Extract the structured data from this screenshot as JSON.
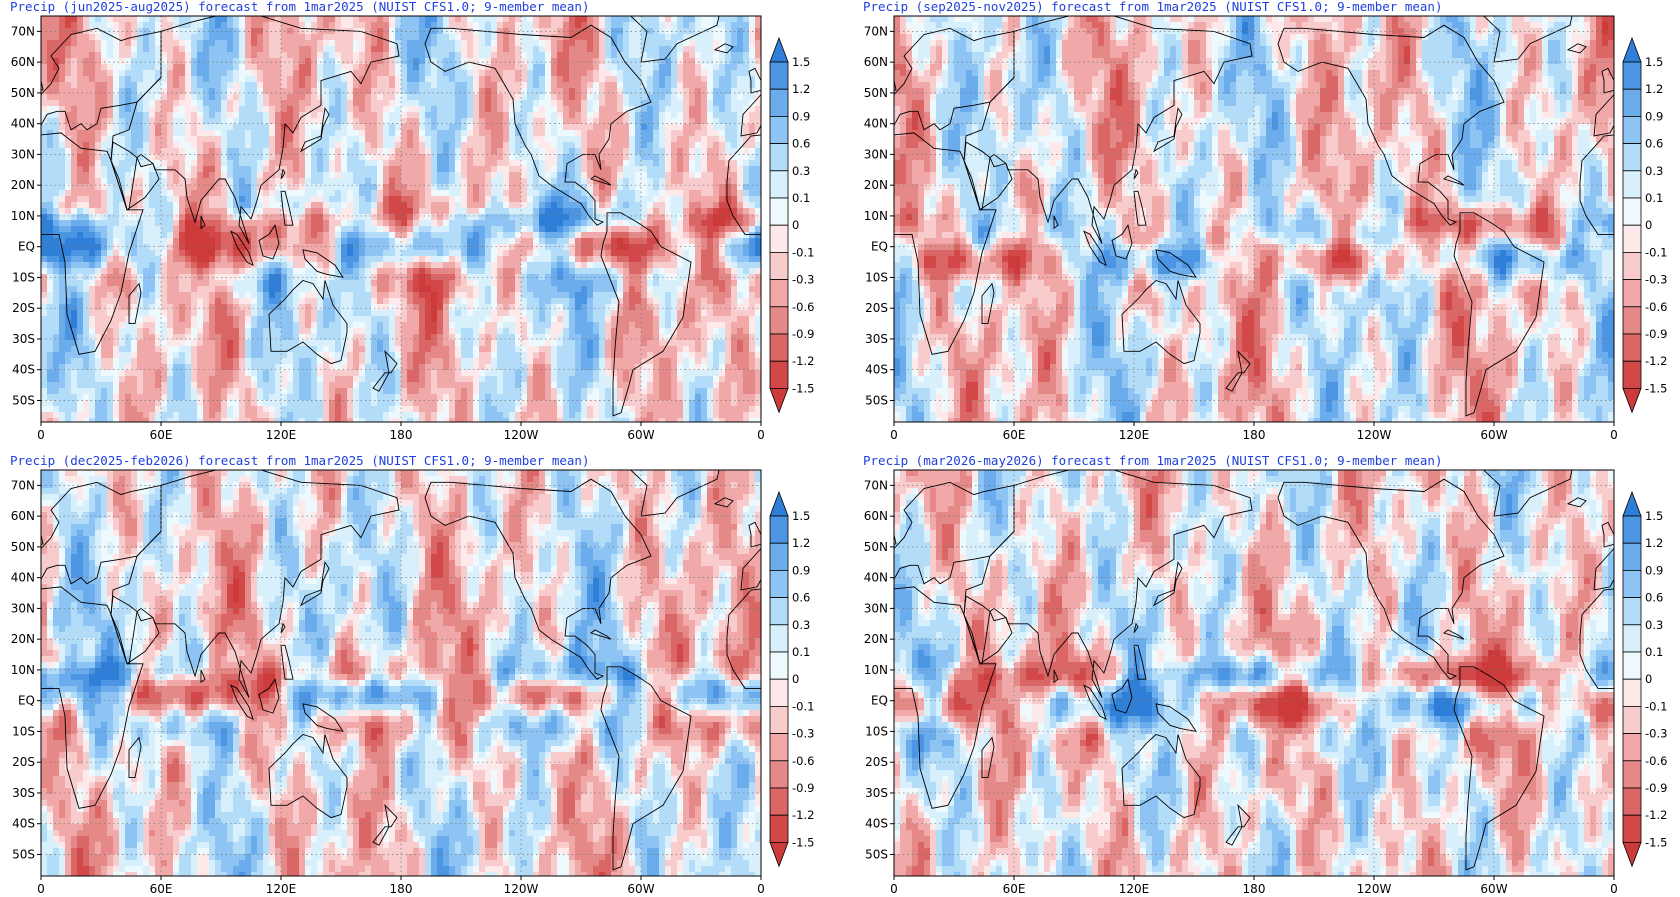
{
  "panels": [
    {
      "title": "Precip (jun2025-aug2025) forecast from 1mar2025 (NUIST CFS1.0; 9-member mean)"
    },
    {
      "title": "Precip (sep2025-nov2025) forecast from 1mar2025 (NUIST CFS1.0; 9-member mean)"
    },
    {
      "title": "Precip (dec2025-feb2026) forecast from 1mar2025 (NUIST CFS1.0; 9-member mean)"
    },
    {
      "title": "Precip (mar2026-may2026) forecast from 1mar2025 (NUIST CFS1.0; 9-member mean)"
    }
  ],
  "lat_labels": [
    "70N",
    "60N",
    "50N",
    "40N",
    "30N",
    "20N",
    "10N",
    "EQ",
    "10S",
    "20S",
    "30S",
    "40S",
    "50S"
  ],
  "lon_labels": [
    "0",
    "60E",
    "120E",
    "180",
    "120W",
    "60W",
    "0"
  ],
  "colorbar": {
    "levels": [
      "1.5",
      "1.2",
      "0.9",
      "0.6",
      "0.3",
      "0.1",
      "0",
      "-0.1",
      "-0.3",
      "-0.6",
      "-0.9",
      "-1.2",
      "-1.5"
    ],
    "colors": [
      "#2f7fd9",
      "#4b95e3",
      "#6aacec",
      "#8dc4f3",
      "#b3dcf8",
      "#d8f0fb",
      "#edf9fc",
      "#fde9e9",
      "#f8cccc",
      "#f0a8a8",
      "#e58888",
      "#db6666",
      "#d24848",
      "#cc3a3a"
    ],
    "zero_color": "#ffffff"
  },
  "map": {
    "lat_range": [
      -57,
      75
    ],
    "lon_range": [
      0,
      360
    ],
    "land_outline_color": "#000000"
  }
}
